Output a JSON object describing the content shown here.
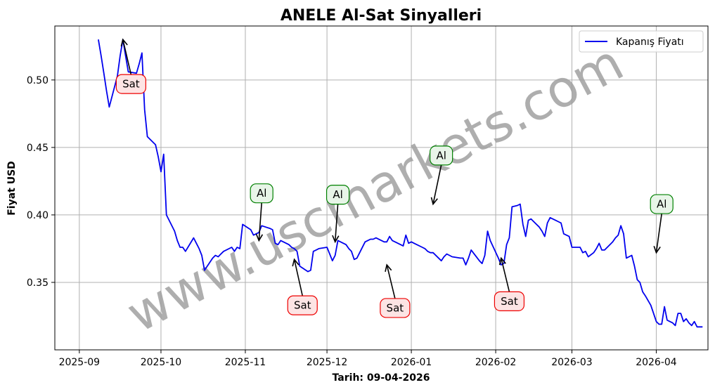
{
  "title": "ANELE Al-Sat Sinyalleri",
  "watermark": "www.uscmarkets.com",
  "colors": {
    "line": "#0000ee",
    "buy_border": "#008000",
    "buy_fill": "#e8f5e8",
    "sell_border": "#ee0000",
    "sell_fill": "#fde4e4",
    "grid": "#b0b0b0"
  },
  "chart_data": {
    "type": "line",
    "title": "ANELE Al-Sat Sinyalleri",
    "xlabel": "Tarih: 09-04-2026",
    "ylabel": "Fiyat USD",
    "xlim": [
      "2025-08-23",
      "2026-04-20"
    ],
    "ylim": [
      0.3,
      0.54
    ],
    "grid": true,
    "legend_position": "top-right",
    "x_ticks": [
      "2025-09-01",
      "2025-10-01",
      "2025-11-01",
      "2025-12-01",
      "2026-01-01",
      "2026-02-01",
      "2026-03-01",
      "2026-04-01"
    ],
    "x_tick_labels": [
      "2025-09",
      "2025-10",
      "2025-11",
      "2025-12",
      "2026-01",
      "2026-02",
      "2026-03",
      "2026-04"
    ],
    "y_ticks": [
      0.35,
      0.4,
      0.45,
      0.5
    ],
    "y_tick_labels": [
      "0.35",
      "0.40",
      "0.45",
      "0.50"
    ],
    "series": [
      {
        "name": "Kapanış Fiyatı",
        "points": [
          [
            "2025-09-08",
            0.53
          ],
          [
            "2025-09-09",
            0.518
          ],
          [
            "2025-09-10",
            0.505
          ],
          [
            "2025-09-11",
            0.492
          ],
          [
            "2025-09-12",
            0.48
          ],
          [
            "2025-09-15",
            0.503
          ],
          [
            "2025-09-16",
            0.518
          ],
          [
            "2025-09-17",
            0.53
          ],
          [
            "2025-09-18",
            0.518
          ],
          [
            "2025-09-19",
            0.506
          ],
          [
            "2025-09-22",
            0.505
          ],
          [
            "2025-09-23",
            0.512
          ],
          [
            "2025-09-24",
            0.52
          ],
          [
            "2025-09-25",
            0.478
          ],
          [
            "2025-09-26",
            0.458
          ],
          [
            "2025-09-29",
            0.452
          ],
          [
            "2025-09-30",
            0.443
          ],
          [
            "2025-10-01",
            0.432
          ],
          [
            "2025-10-02",
            0.445
          ],
          [
            "2025-10-03",
            0.4
          ],
          [
            "2025-10-06",
            0.388
          ],
          [
            "2025-10-07",
            0.381
          ],
          [
            "2025-10-08",
            0.376
          ],
          [
            "2025-10-09",
            0.376
          ],
          [
            "2025-10-10",
            0.373
          ],
          [
            "2025-10-13",
            0.383
          ],
          [
            "2025-10-14",
            0.379
          ],
          [
            "2025-10-15",
            0.375
          ],
          [
            "2025-10-16",
            0.37
          ],
          [
            "2025-10-17",
            0.359
          ],
          [
            "2025-10-20",
            0.368
          ],
          [
            "2025-10-21",
            0.37
          ],
          [
            "2025-10-22",
            0.369
          ],
          [
            "2025-10-23",
            0.371
          ],
          [
            "2025-10-24",
            0.373
          ],
          [
            "2025-10-27",
            0.376
          ],
          [
            "2025-10-28",
            0.373
          ],
          [
            "2025-10-29",
            0.376
          ],
          [
            "2025-10-30",
            0.375
          ],
          [
            "2025-10-31",
            0.393
          ],
          [
            "2025-11-03",
            0.389
          ],
          [
            "2025-11-04",
            0.385
          ],
          [
            "2025-11-05",
            0.386
          ],
          [
            "2025-11-06",
            0.387
          ],
          [
            "2025-11-07",
            0.392
          ],
          [
            "2025-11-10",
            0.39
          ],
          [
            "2025-11-11",
            0.389
          ],
          [
            "2025-11-12",
            0.379
          ],
          [
            "2025-11-13",
            0.378
          ],
          [
            "2025-11-14",
            0.381
          ],
          [
            "2025-11-17",
            0.378
          ],
          [
            "2025-11-18",
            0.376
          ],
          [
            "2025-11-19",
            0.375
          ],
          [
            "2025-11-20",
            0.373
          ],
          [
            "2025-11-21",
            0.362
          ],
          [
            "2025-11-24",
            0.358
          ],
          [
            "2025-11-25",
            0.359
          ],
          [
            "2025-11-26",
            0.373
          ],
          [
            "2025-11-27",
            0.374
          ],
          [
            "2025-11-28",
            0.375
          ],
          [
            "2025-12-01",
            0.376
          ],
          [
            "2025-12-02",
            0.371
          ],
          [
            "2025-12-03",
            0.366
          ],
          [
            "2025-12-04",
            0.37
          ],
          [
            "2025-12-05",
            0.381
          ],
          [
            "2025-12-08",
            0.378
          ],
          [
            "2025-12-09",
            0.375
          ],
          [
            "2025-12-10",
            0.373
          ],
          [
            "2025-12-11",
            0.367
          ],
          [
            "2025-12-12",
            0.368
          ],
          [
            "2025-12-15",
            0.38
          ],
          [
            "2025-12-16",
            0.381
          ],
          [
            "2025-12-17",
            0.382
          ],
          [
            "2025-12-18",
            0.382
          ],
          [
            "2025-12-19",
            0.383
          ],
          [
            "2025-12-22",
            0.38
          ],
          [
            "2025-12-23",
            0.38
          ],
          [
            "2025-12-24",
            0.384
          ],
          [
            "2025-12-25",
            0.381
          ],
          [
            "2025-12-26",
            0.38
          ],
          [
            "2025-12-29",
            0.377
          ],
          [
            "2025-12-30",
            0.385
          ],
          [
            "2025-12-31",
            0.379
          ],
          [
            "2026-01-01",
            0.38
          ],
          [
            "2026-01-02",
            0.379
          ],
          [
            "2026-01-05",
            0.376
          ],
          [
            "2026-01-06",
            0.375
          ],
          [
            "2026-01-07",
            0.373
          ],
          [
            "2026-01-08",
            0.372
          ],
          [
            "2026-01-09",
            0.372
          ],
          [
            "2026-01-12",
            0.366
          ],
          [
            "2026-01-13",
            0.369
          ],
          [
            "2026-01-14",
            0.371
          ],
          [
            "2026-01-15",
            0.37
          ],
          [
            "2026-01-16",
            0.369
          ],
          [
            "2026-01-19",
            0.368
          ],
          [
            "2026-01-20",
            0.368
          ],
          [
            "2026-01-21",
            0.363
          ],
          [
            "2026-01-22",
            0.368
          ],
          [
            "2026-01-23",
            0.374
          ],
          [
            "2026-01-26",
            0.366
          ],
          [
            "2026-01-27",
            0.364
          ],
          [
            "2026-01-28",
            0.37
          ],
          [
            "2026-01-29",
            0.388
          ],
          [
            "2026-01-30",
            0.381
          ],
          [
            "2026-02-02",
            0.368
          ],
          [
            "2026-02-03",
            0.363
          ],
          [
            "2026-02-04",
            0.364
          ],
          [
            "2026-02-05",
            0.378
          ],
          [
            "2026-02-06",
            0.383
          ],
          [
            "2026-02-07",
            0.406
          ],
          [
            "2026-02-09",
            0.407
          ],
          [
            "2026-02-10",
            0.408
          ],
          [
            "2026-02-11",
            0.393
          ],
          [
            "2026-02-12",
            0.384
          ],
          [
            "2026-02-13",
            0.396
          ],
          [
            "2026-02-14",
            0.397
          ],
          [
            "2026-02-16",
            0.393
          ],
          [
            "2026-02-17",
            0.391
          ],
          [
            "2026-02-18",
            0.388
          ],
          [
            "2026-02-19",
            0.384
          ],
          [
            "2026-02-20",
            0.394
          ],
          [
            "2026-02-21",
            0.398
          ],
          [
            "2026-02-23",
            0.396
          ],
          [
            "2026-02-24",
            0.395
          ],
          [
            "2026-02-25",
            0.394
          ],
          [
            "2026-02-26",
            0.386
          ],
          [
            "2026-02-27",
            0.385
          ],
          [
            "2026-02-28",
            0.384
          ],
          [
            "2026-03-01",
            0.376
          ],
          [
            "2026-03-02",
            0.376
          ],
          [
            "2026-03-03",
            0.376
          ],
          [
            "2026-03-04",
            0.376
          ],
          [
            "2026-03-05",
            0.372
          ],
          [
            "2026-03-06",
            0.373
          ],
          [
            "2026-03-07",
            0.369
          ],
          [
            "2026-03-09",
            0.372
          ],
          [
            "2026-03-10",
            0.375
          ],
          [
            "2026-03-11",
            0.379
          ],
          [
            "2026-03-12",
            0.374
          ],
          [
            "2026-03-13",
            0.374
          ],
          [
            "2026-03-14",
            0.376
          ],
          [
            "2026-03-16",
            0.38
          ],
          [
            "2026-03-17",
            0.383
          ],
          [
            "2026-03-18",
            0.385
          ],
          [
            "2026-03-19",
            0.392
          ],
          [
            "2026-03-20",
            0.386
          ],
          [
            "2026-03-21",
            0.368
          ],
          [
            "2026-03-23",
            0.37
          ],
          [
            "2026-03-24",
            0.362
          ],
          [
            "2026-03-25",
            0.352
          ],
          [
            "2026-03-26",
            0.35
          ],
          [
            "2026-03-27",
            0.343
          ],
          [
            "2026-03-28",
            0.34
          ],
          [
            "2026-03-30",
            0.333
          ],
          [
            "2026-03-31",
            0.327
          ],
          [
            "2026-04-01",
            0.321
          ],
          [
            "2026-04-02",
            0.319
          ],
          [
            "2026-04-03",
            0.319
          ],
          [
            "2026-04-04",
            0.332
          ],
          [
            "2026-04-05",
            0.322
          ],
          [
            "2026-04-06",
            0.321
          ],
          [
            "2026-04-07",
            0.32
          ],
          [
            "2026-04-08",
            0.318
          ],
          [
            "2026-04-09",
            0.327
          ],
          [
            "2026-04-10",
            0.327
          ],
          [
            "2026-04-11",
            0.321
          ],
          [
            "2026-04-12",
            0.323
          ],
          [
            "2026-04-13",
            0.32
          ],
          [
            "2026-04-14",
            0.318
          ],
          [
            "2026-04-15",
            0.321
          ],
          [
            "2026-04-16",
            0.317
          ],
          [
            "2026-04-17",
            0.317
          ],
          [
            "2026-04-18",
            0.317
          ]
        ]
      }
    ],
    "signals": [
      {
        "type": "sell",
        "label": "Sat",
        "date": "2025-09-17",
        "price": 0.53,
        "label_date": "2025-09-20",
        "label_price": 0.497
      },
      {
        "type": "buy",
        "label": "Al",
        "date": "2025-11-06",
        "price": 0.381,
        "label_date": "2025-11-07",
        "label_price": 0.416
      },
      {
        "type": "sell",
        "label": "Sat",
        "date": "2025-11-19",
        "price": 0.367,
        "label_date": "2025-11-22",
        "label_price": 0.333
      },
      {
        "type": "buy",
        "label": "Al",
        "date": "2025-12-04",
        "price": 0.38,
        "label_date": "2025-12-05",
        "label_price": 0.415
      },
      {
        "type": "sell",
        "label": "Sat",
        "date": "2025-12-23",
        "price": 0.363,
        "label_date": "2025-12-26",
        "label_price": 0.331
      },
      {
        "type": "buy",
        "label": "Al",
        "date": "2026-01-09",
        "price": 0.408,
        "label_date": "2026-01-12",
        "label_price": 0.444
      },
      {
        "type": "sell",
        "label": "Sat",
        "date": "2026-02-03",
        "price": 0.368,
        "label_date": "2026-02-06",
        "label_price": 0.336
      },
      {
        "type": "buy",
        "label": "Al",
        "date": "2026-04-01",
        "price": 0.372,
        "label_date": "2026-04-03",
        "label_price": 0.408
      }
    ]
  }
}
